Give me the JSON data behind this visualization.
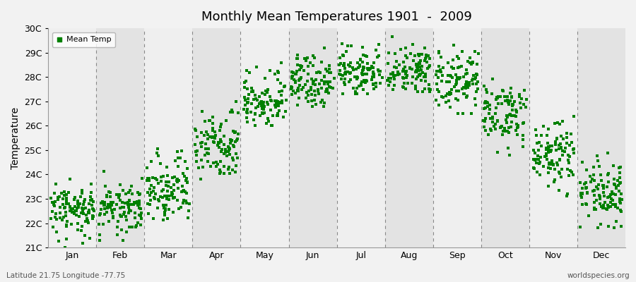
{
  "title": "Monthly Mean Temperatures 1901  -  2009",
  "ylabel": "Temperature",
  "footer_left": "Latitude 21.75 Longitude -77.75",
  "footer_right": "worldspecies.org",
  "legend_label": "Mean Temp",
  "ylim": [
    21,
    30
  ],
  "yticks": [
    21,
    22,
    23,
    24,
    25,
    26,
    27,
    28,
    29,
    30
  ],
  "ytick_labels": [
    "21C",
    "22C",
    "23C",
    "24C",
    "25C",
    "26C",
    "27C",
    "28C",
    "29C",
    "30C"
  ],
  "months": [
    "Jan",
    "Feb",
    "Mar",
    "Apr",
    "May",
    "Jun",
    "Jul",
    "Aug",
    "Sep",
    "Oct",
    "Nov",
    "Dec"
  ],
  "marker_color": "#008000",
  "background_color": "#f2f2f2",
  "band_light": "#efefef",
  "band_dark": "#e3e3e3",
  "month_means": [
    22.5,
    22.6,
    23.5,
    25.2,
    27.0,
    27.8,
    28.2,
    28.3,
    27.8,
    26.5,
    24.8,
    23.2
  ],
  "month_std": [
    0.55,
    0.6,
    0.75,
    0.65,
    0.6,
    0.55,
    0.45,
    0.55,
    0.6,
    0.65,
    0.65,
    0.65
  ],
  "month_min": [
    21.0,
    21.3,
    22.0,
    23.8,
    26.0,
    26.5,
    27.3,
    27.4,
    26.5,
    24.5,
    23.0,
    21.8
  ],
  "month_max": [
    24.2,
    24.3,
    25.5,
    27.0,
    28.8,
    29.2,
    29.5,
    29.7,
    29.3,
    28.3,
    26.8,
    25.8
  ],
  "n_years": 109
}
